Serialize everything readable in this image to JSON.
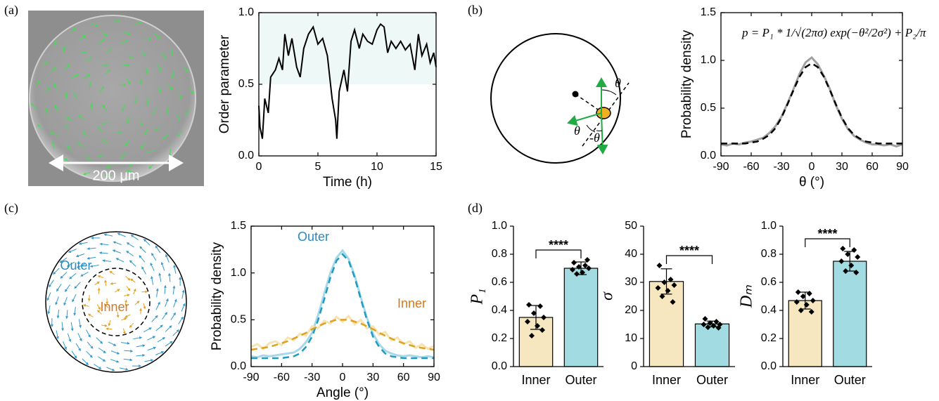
{
  "panel_labels": [
    "(a)",
    "(b)",
    "(c)",
    "(d)"
  ],
  "image": {
    "scale_label": "200 μm"
  },
  "diagram_b": {
    "angle_labels": [
      "θ",
      "θ",
      "-θ"
    ]
  },
  "diagram_c": {
    "labels": [
      "Outer",
      "Inner"
    ]
  },
  "chart_data": [
    {
      "type": "line",
      "xlabel": "Time (h)",
      "ylabel": "Order parameter",
      "xlim": [
        0,
        15
      ],
      "xticks": [
        0,
        5,
        10,
        15
      ],
      "ylim": [
        0,
        1
      ],
      "yticks": [
        {
          "value": 0,
          "label": "0.0"
        },
        {
          "value": 0.5,
          "label": "0.5"
        },
        {
          "value": 1,
          "label": "1.0"
        }
      ],
      "highlight": {
        "ylim": [
          0.5,
          1
        ],
        "color": "#eef8f7"
      },
      "color": "#000000",
      "x": [
        0,
        0.1,
        0.3,
        0.5,
        0.8,
        1.0,
        1.4,
        1.7,
        2.0,
        2.2,
        2.5,
        2.8,
        3.2,
        3.5,
        3.8,
        4.2,
        4.6,
        5.0,
        5.4,
        5.8,
        6.2,
        6.5,
        6.6,
        6.8,
        7.2,
        7.5,
        7.8,
        8.1,
        8.5,
        8.8,
        9.2,
        9.6,
        10.0,
        10.3,
        10.6,
        10.9,
        11.2,
        11.6,
        12.0,
        12.4,
        12.8,
        13.2,
        13.5,
        13.8,
        14.2,
        14.5,
        14.8,
        15.0
      ],
      "values": [
        0.35,
        0.2,
        0.12,
        0.4,
        0.3,
        0.55,
        0.6,
        0.68,
        0.6,
        0.85,
        0.7,
        0.82,
        0.62,
        0.55,
        0.75,
        0.85,
        0.9,
        0.78,
        0.82,
        0.7,
        0.4,
        0.25,
        0.12,
        0.45,
        0.6,
        0.45,
        0.8,
        0.88,
        0.75,
        0.85,
        0.8,
        0.78,
        0.88,
        0.92,
        0.9,
        0.72,
        0.8,
        0.75,
        0.8,
        0.74,
        0.78,
        0.6,
        0.85,
        0.7,
        0.78,
        0.65,
        0.72,
        0.62
      ]
    },
    {
      "type": "density",
      "xlabel": "θ (°)",
      "ylabel": "Probability density",
      "formula": "p = P₁ * 1/√(2πσ) exp(−θ²/2σ²) + P₂/π",
      "xlim": [
        -90,
        90
      ],
      "xticks": [
        -90,
        -60,
        -30,
        0,
        30,
        60,
        90
      ],
      "ylim": [
        0,
        1.5
      ],
      "yticks": [
        {
          "value": 0,
          "label": "0.0"
        },
        {
          "value": 0.5,
          "label": "0.5"
        },
        {
          "value": 1,
          "label": "1.0"
        },
        {
          "value": 1.5,
          "label": "1.5"
        }
      ],
      "x": [
        -90,
        -84,
        -78,
        -72,
        -66,
        -60,
        -54,
        -48,
        -42,
        -36,
        -30,
        -24,
        -18,
        -12,
        -6,
        0,
        6,
        12,
        18,
        24,
        30,
        36,
        42,
        48,
        54,
        60,
        66,
        72,
        78,
        84,
        90
      ],
      "series": [
        {
          "color": "#a0a0a0",
          "fit_color": "#000000",
          "values": [
            0.12,
            0.11,
            0.13,
            0.12,
            0.14,
            0.15,
            0.17,
            0.19,
            0.24,
            0.31,
            0.41,
            0.55,
            0.7,
            0.86,
            0.98,
            1.03,
            0.96,
            0.84,
            0.7,
            0.53,
            0.39,
            0.28,
            0.21,
            0.17,
            0.14,
            0.12,
            0.12,
            0.11,
            0.12,
            0.1,
            0.12
          ],
          "fit": [
            0.13,
            0.13,
            0.13,
            0.13,
            0.13,
            0.14,
            0.15,
            0.18,
            0.22,
            0.29,
            0.4,
            0.54,
            0.69,
            0.83,
            0.93,
            0.97,
            0.93,
            0.83,
            0.69,
            0.54,
            0.4,
            0.29,
            0.22,
            0.18,
            0.15,
            0.14,
            0.13,
            0.13,
            0.13,
            0.13,
            0.13
          ]
        }
      ]
    },
    {
      "type": "density",
      "xlabel": "Angle (°)",
      "ylabel": "Probability density",
      "xlim": [
        -90,
        90
      ],
      "xticks": [
        -90,
        -60,
        -30,
        0,
        30,
        60,
        90
      ],
      "ylim": [
        0,
        1.5
      ],
      "yticks": [
        {
          "value": 0,
          "label": "0.0"
        },
        {
          "value": 0.5,
          "label": "0.5"
        },
        {
          "value": 1,
          "label": "1.0"
        },
        {
          "value": 1.5,
          "label": "1.5"
        }
      ],
      "x": [
        -90,
        -84,
        -78,
        -72,
        -66,
        -60,
        -54,
        -48,
        -42,
        -36,
        -30,
        -24,
        -18,
        -12,
        -6,
        0,
        6,
        12,
        18,
        24,
        30,
        36,
        42,
        48,
        54,
        60,
        66,
        72,
        78,
        84,
        90
      ],
      "series": [
        {
          "name": "Outer",
          "color": "#a6d9e8",
          "fit_color": "#1f9ac0",
          "label_color": "#2a8ac4",
          "values": [
            0.11,
            0.1,
            0.12,
            0.11,
            0.12,
            0.13,
            0.14,
            0.15,
            0.19,
            0.26,
            0.36,
            0.55,
            0.78,
            1.0,
            1.16,
            1.24,
            1.15,
            0.97,
            0.74,
            0.52,
            0.35,
            0.24,
            0.17,
            0.14,
            0.12,
            0.11,
            0.12,
            0.11,
            0.1,
            0.11,
            0.1
          ],
          "fit": [
            0.09,
            0.09,
            0.09,
            0.09,
            0.09,
            0.09,
            0.1,
            0.11,
            0.14,
            0.21,
            0.32,
            0.5,
            0.72,
            0.95,
            1.13,
            1.2,
            1.13,
            0.95,
            0.72,
            0.5,
            0.32,
            0.21,
            0.14,
            0.11,
            0.1,
            0.09,
            0.09,
            0.09,
            0.09,
            0.09,
            0.09
          ]
        },
        {
          "name": "Inner",
          "color": "#f6e3b0",
          "fit_color": "#e0a020",
          "label_color": "#d4781e",
          "values": [
            0.21,
            0.24,
            0.19,
            0.25,
            0.27,
            0.23,
            0.31,
            0.28,
            0.35,
            0.33,
            0.43,
            0.41,
            0.49,
            0.46,
            0.53,
            0.48,
            0.54,
            0.45,
            0.5,
            0.41,
            0.43,
            0.34,
            0.37,
            0.28,
            0.31,
            0.24,
            0.27,
            0.2,
            0.24,
            0.19,
            0.22
          ],
          "fit": [
            0.18,
            0.19,
            0.2,
            0.21,
            0.23,
            0.25,
            0.27,
            0.3,
            0.33,
            0.36,
            0.4,
            0.43,
            0.46,
            0.48,
            0.5,
            0.5,
            0.5,
            0.48,
            0.46,
            0.43,
            0.4,
            0.36,
            0.33,
            0.3,
            0.27,
            0.25,
            0.23,
            0.21,
            0.2,
            0.19,
            0.18
          ]
        }
      ]
    },
    {
      "type": "bar",
      "ylabel": "P₁",
      "categories": [
        "Inner",
        "Outer"
      ],
      "colors": [
        "#f7e7c0",
        "#a3dbe3"
      ],
      "ylim": [
        0,
        1
      ],
      "yticks": [
        {
          "value": 0,
          "label": "0.0"
        },
        0.2,
        0.4,
        0.6,
        0.8,
        {
          "value": 1,
          "label": "1.0"
        }
      ],
      "values": [
        0.35,
        0.7
      ],
      "errors": [
        0.085,
        0.045
      ],
      "significance": "****",
      "points": [
        [
          0.44,
          0.43,
          0.38,
          0.35,
          0.32,
          0.29,
          0.22,
          0.26
        ],
        [
          0.74,
          0.72,
          0.71,
          0.7,
          0.69,
          0.67,
          0.66,
          0.76
        ]
      ]
    },
    {
      "type": "bar",
      "ylabel": "σ",
      "categories": [
        "Inner",
        "Outer"
      ],
      "colors": [
        "#f7e7c0",
        "#a3dbe3"
      ],
      "ylim": [
        0,
        50
      ],
      "yticks": [
        0,
        10,
        20,
        30,
        40,
        50
      ],
      "values": [
        30.3,
        15.2
      ],
      "errors": [
        4.5,
        1.0
      ],
      "significance": "****",
      "points": [
        [
          36,
          31,
          30,
          29,
          28,
          27,
          25,
          23
        ],
        [
          17,
          16,
          15.5,
          15,
          15,
          14.5,
          14,
          13.8
        ]
      ]
    },
    {
      "type": "bar",
      "ylabel": "Dₘ",
      "categories": [
        "Inner",
        "Outer"
      ],
      "colors": [
        "#f7e7c0",
        "#a3dbe3"
      ],
      "ylim": [
        0,
        1
      ],
      "yticks": [
        {
          "value": 0,
          "label": "0.0"
        },
        0.2,
        0.4,
        0.6,
        0.8,
        {
          "value": 1,
          "label": "1.0"
        }
      ],
      "values": [
        0.47,
        0.75
      ],
      "errors": [
        0.06,
        0.07
      ],
      "significance": "****",
      "points": [
        [
          0.53,
          0.52,
          0.5,
          0.47,
          0.46,
          0.44,
          0.4,
          0.39
        ],
        [
          0.84,
          0.83,
          0.8,
          0.78,
          0.75,
          0.72,
          0.68,
          0.67
        ]
      ]
    }
  ]
}
